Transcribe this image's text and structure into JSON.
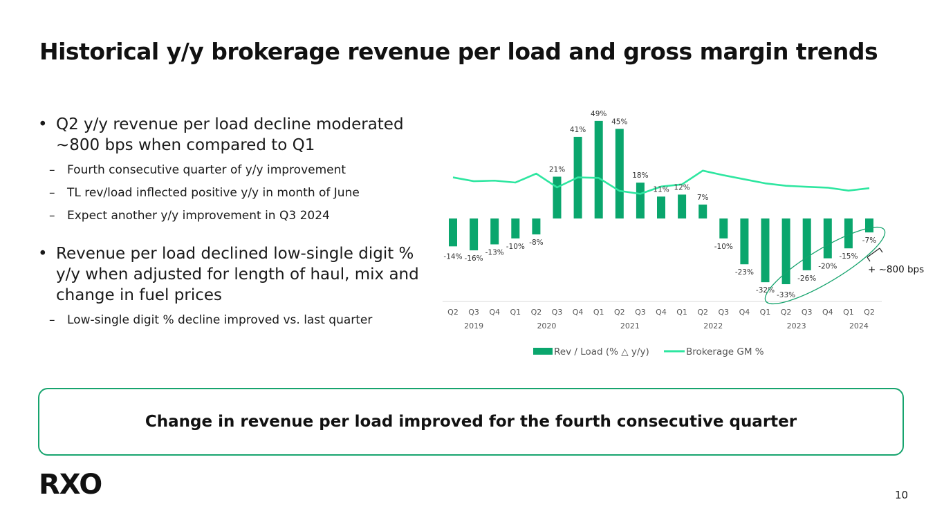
{
  "title": "Historical y/y brokerage revenue per load and gross margin trends",
  "bullets": [
    {
      "text": "Q2 y/y revenue per load decline moderated ~800 bps when compared to Q1",
      "subs": [
        "Fourth consecutive quarter of y/y improvement",
        "TL rev/load inflected positive y/y in month of June",
        "Expect another y/y improvement in Q3 2024"
      ]
    },
    {
      "text": "Revenue per load declined low-single digit % y/y when adjusted for length of haul, mix and change in fuel prices",
      "subs": [
        "Low-single digit % decline improved vs. last quarter"
      ]
    }
  ],
  "dash": "–",
  "callout": "Change in revenue per load improved for the fourth consecutive quarter",
  "logo": "RXO",
  "page_number": "10",
  "colors": {
    "bar": "#0aa66d",
    "line": "#2ee6a0",
    "accent": "#17a46e"
  },
  "chart_data": {
    "type": "bar",
    "categories": [
      "Q2",
      "Q3",
      "Q4",
      "Q1",
      "Q2",
      "Q3",
      "Q4",
      "Q1",
      "Q2",
      "Q3",
      "Q4",
      "Q1",
      "Q2",
      "Q3",
      "Q4",
      "Q1",
      "Q2",
      "Q3",
      "Q4",
      "Q1",
      "Q2"
    ],
    "years": [
      {
        "label": "2019",
        "from": 0,
        "to": 2
      },
      {
        "label": "2020",
        "from": 3,
        "to": 6
      },
      {
        "label": "2021",
        "from": 7,
        "to": 10
      },
      {
        "label": "2022",
        "from": 11,
        "to": 14
      },
      {
        "label": "2023",
        "from": 15,
        "to": 18
      },
      {
        "label": "2024",
        "from": 19,
        "to": 20
      }
    ],
    "series": [
      {
        "name": "Rev / Load (% △ y/y)",
        "type": "bar",
        "values": [
          -14,
          -16,
          -13,
          -10,
          -8,
          21,
          41,
          49,
          45,
          18,
          11,
          12,
          7,
          -10,
          -23,
          -32,
          -33,
          -26,
          -20,
          -15,
          -7
        ],
        "labels": [
          "-14%",
          "-16%",
          "-13%",
          "-10%",
          "-8%",
          "21%",
          "41%",
          "49%",
          "45%",
          "18%",
          "11%",
          "12%",
          "7%",
          "-10%",
          "-23%",
          "-32%",
          "-33%",
          "-26%",
          "-20%",
          "-15%",
          "-7%"
        ]
      },
      {
        "name": "Brokerage GM %",
        "type": "line",
        "values": [
          17.8,
          16.4,
          16.6,
          15.9,
          19.2,
          14.1,
          17.8,
          17.6,
          12.8,
          11.7,
          14.4,
          15.2,
          20.3,
          18.6,
          17.1,
          15.6,
          14.7,
          14.3,
          14.0,
          12.9,
          13.8
        ]
      }
    ],
    "annotation": "+ ~800 bps",
    "ylim": [
      -40,
      55
    ]
  }
}
